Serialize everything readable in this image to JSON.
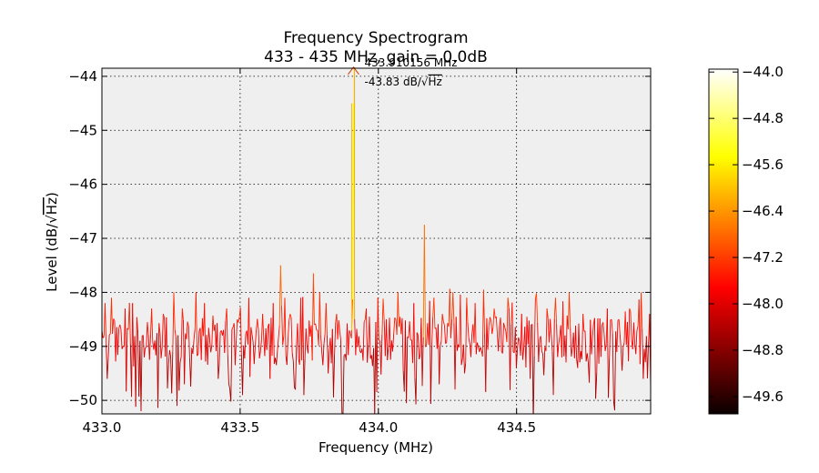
{
  "chart_data": {
    "type": "line",
    "title": "Frequency Spectrogram",
    "subtitle": "433 - 435 MHz, gain = 0.0dB",
    "xlabel": "Frequency (MHz)",
    "ylabel_prefix": "Level (dB/",
    "ylabel_radicand": "Hz",
    "ylabel_suffix": ")",
    "xlim": [
      433.0,
      434.985
    ],
    "ylim": [
      -50.25,
      -43.85
    ],
    "x_ticks": [
      433.0,
      433.5,
      434.0,
      434.5
    ],
    "x_tick_labels": [
      "433.0",
      "433.5",
      "434.0",
      "434.5"
    ],
    "y_ticks": [
      -44,
      -45,
      -46,
      -47,
      -48,
      -49,
      -50
    ],
    "y_tick_labels": [
      "−44",
      "−45",
      "−46",
      "−47",
      "−48",
      "−49",
      "−50"
    ],
    "grid": true,
    "plot_background": "#efefef",
    "colormap": "hot",
    "color_range": [
      -50.0,
      -43.83
    ],
    "peak": {
      "x": 433.910156,
      "y": -43.83,
      "freq_label": "433.910156 MHz",
      "level_label_prefix": "-43.83 dB/",
      "level_label_radicand": "Hz"
    },
    "spikes": [
      {
        "x": 433.0,
        "y": -48.7
      },
      {
        "x": 433.01,
        "y": -48.2
      },
      {
        "x": 433.035,
        "y": -48.1
      },
      {
        "x": 433.065,
        "y": -48.6
      },
      {
        "x": 433.085,
        "y": -48.3
      },
      {
        "x": 433.11,
        "y": -48.2
      },
      {
        "x": 433.14,
        "y": -48.0
      },
      {
        "x": 433.18,
        "y": -48.3
      },
      {
        "x": 433.22,
        "y": -48.4
      },
      {
        "x": 433.26,
        "y": -48.0
      },
      {
        "x": 433.29,
        "y": -48.3
      },
      {
        "x": 433.34,
        "y": -48.0
      },
      {
        "x": 433.37,
        "y": -48.2
      },
      {
        "x": 433.42,
        "y": -48.1
      },
      {
        "x": 433.45,
        "y": -48.3
      },
      {
        "x": 433.49,
        "y": -48.5
      },
      {
        "x": 433.53,
        "y": -48.1
      },
      {
        "x": 433.58,
        "y": -48.4
      },
      {
        "x": 433.62,
        "y": -48.2
      },
      {
        "x": 433.645,
        "y": -47.5
      },
      {
        "x": 433.68,
        "y": -48.4
      },
      {
        "x": 433.72,
        "y": -48.1
      },
      {
        "x": 433.765,
        "y": -47.65
      },
      {
        "x": 433.81,
        "y": -48.2
      },
      {
        "x": 433.85,
        "y": -48.4
      },
      {
        "x": 433.91,
        "y": -44.5
      },
      {
        "x": 433.955,
        "y": -48.3
      },
      {
        "x": 434.0,
        "y": -48.1
      },
      {
        "x": 434.03,
        "y": -48.5
      },
      {
        "x": 434.07,
        "y": -48.0
      },
      {
        "x": 434.1,
        "y": -48.3
      },
      {
        "x": 434.13,
        "y": -48.2
      },
      {
        "x": 434.165,
        "y": -46.75
      },
      {
        "x": 434.2,
        "y": -48.1
      },
      {
        "x": 434.23,
        "y": -48.4
      },
      {
        "x": 434.27,
        "y": -48.0
      },
      {
        "x": 434.32,
        "y": -48.1
      },
      {
        "x": 434.35,
        "y": -48.2
      },
      {
        "x": 434.38,
        "y": -47.95
      },
      {
        "x": 434.42,
        "y": -48.3
      },
      {
        "x": 434.47,
        "y": -48.1
      },
      {
        "x": 434.52,
        "y": -48.4
      },
      {
        "x": 434.57,
        "y": -48.1
      },
      {
        "x": 434.61,
        "y": -48.3
      },
      {
        "x": 434.64,
        "y": -48.1
      },
      {
        "x": 434.69,
        "y": -48.0
      },
      {
        "x": 434.74,
        "y": -48.4
      },
      {
        "x": 434.79,
        "y": -48.1
      },
      {
        "x": 434.83,
        "y": -48.3
      },
      {
        "x": 434.87,
        "y": -48.5
      },
      {
        "x": 434.91,
        "y": -48.3
      },
      {
        "x": 434.95,
        "y": -48.0
      },
      {
        "x": 434.98,
        "y": -48.4
      }
    ],
    "dips": [
      {
        "x": 433.02,
        "y": -49.6
      },
      {
        "x": 433.14,
        "y": -50.2
      },
      {
        "x": 433.27,
        "y": -50.1
      },
      {
        "x": 433.3,
        "y": -49.7
      },
      {
        "x": 433.42,
        "y": -49.6
      },
      {
        "x": 433.51,
        "y": -49.9
      },
      {
        "x": 433.61,
        "y": -49.6
      },
      {
        "x": 433.7,
        "y": -49.8
      },
      {
        "x": 433.73,
        "y": -49.9
      },
      {
        "x": 433.82,
        "y": -49.5
      },
      {
        "x": 433.96,
        "y": -49.3
      },
      {
        "x": 434.1,
        "y": -50.05
      },
      {
        "x": 434.22,
        "y": -49.7
      },
      {
        "x": 434.31,
        "y": -49.5
      },
      {
        "x": 434.5,
        "y": -49.4
      },
      {
        "x": 434.55,
        "y": -49.6
      },
      {
        "x": 434.72,
        "y": -49.4
      },
      {
        "x": 434.79,
        "y": -49.5
      },
      {
        "x": 434.88,
        "y": -49.45
      },
      {
        "x": 434.96,
        "y": -49.6
      }
    ],
    "colorbar": {
      "ticks": [
        -44.0,
        -44.8,
        -45.6,
        -46.4,
        -47.2,
        -48.0,
        -48.8,
        -49.6
      ],
      "tick_labels": [
        "−44.0",
        "−44.8",
        "−45.6",
        "−46.4",
        "−47.2",
        "−48.0",
        "−48.8",
        "−49.6"
      ],
      "range": [
        -49.9,
        -43.95
      ]
    }
  }
}
